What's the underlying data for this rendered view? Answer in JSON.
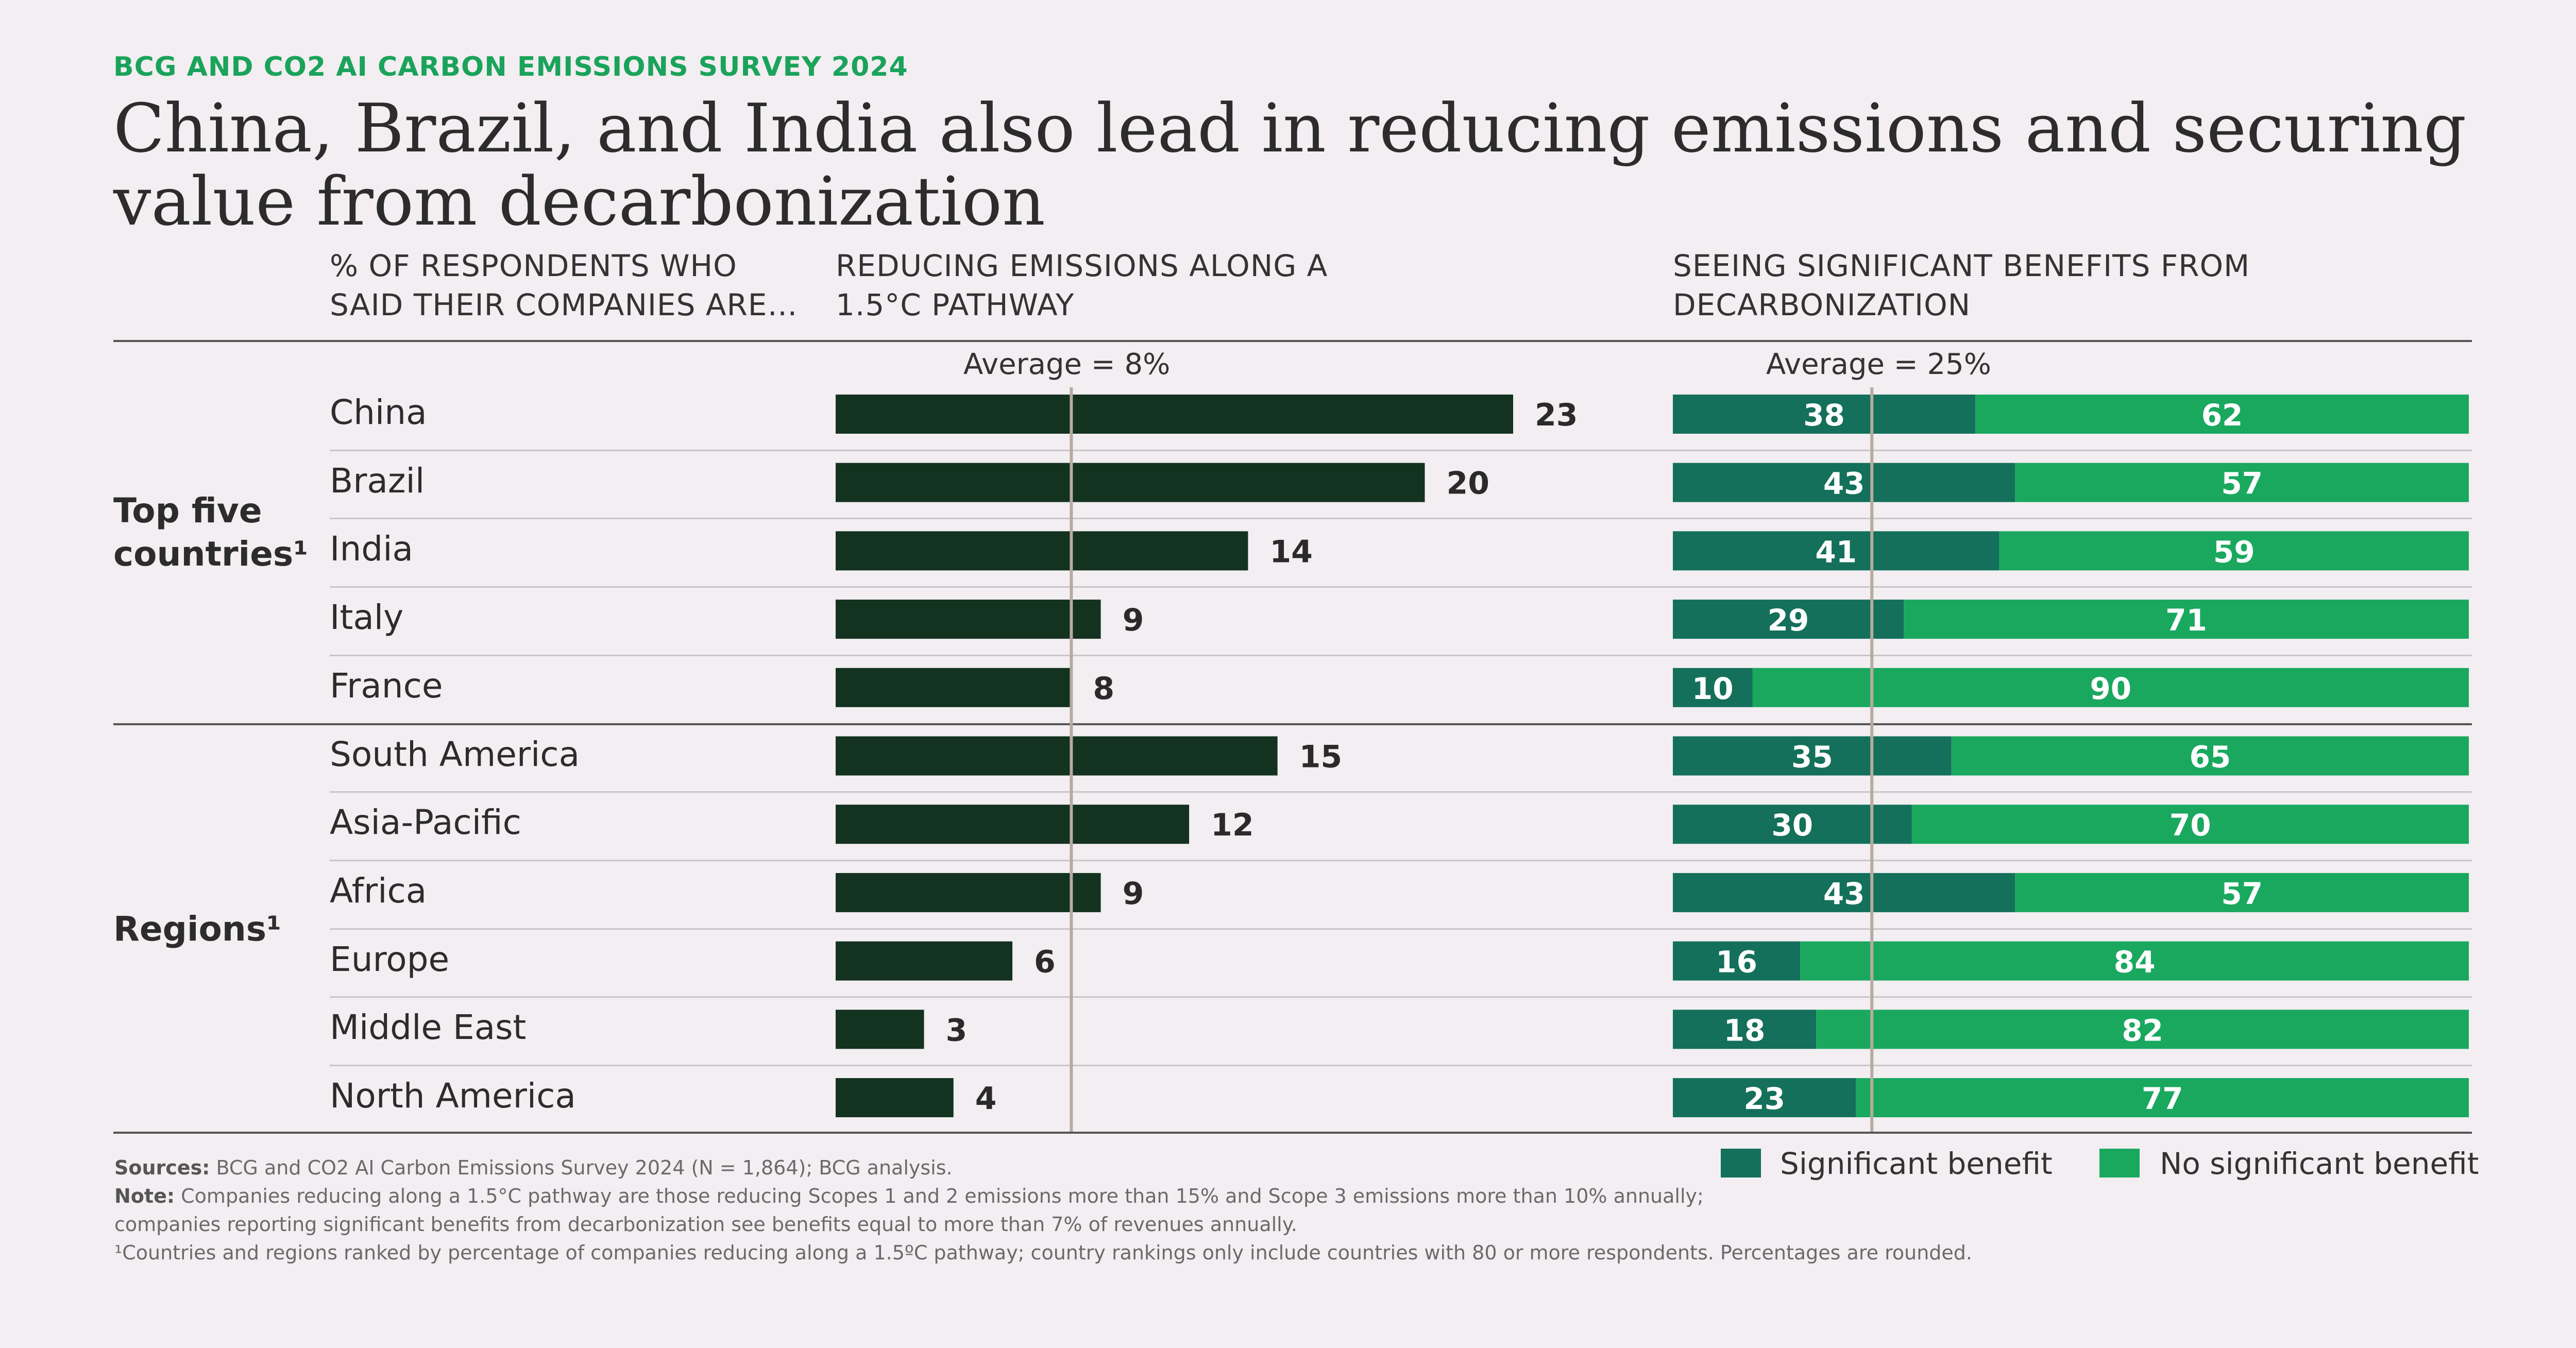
{
  "kicker": "BCG AND CO2 AI CARBON EMISSIONS SURVEY 2024",
  "title": "China, Brazil, and India also lead in reducing emissions and securing value from decarbonization",
  "column_headers": {
    "respondents": "% OF RESPONDENTS WHO SAID THEIR COMPANIES ARE…",
    "reducing": "REDUCING EMISSIONS ALONG A 1.5°C PATHWAY",
    "benefits": "SEEING SIGNIFICANT BENEFITS FROM DECARBONIZATION"
  },
  "averages": {
    "reducing_label": "Average = 8%",
    "benefits_label": "Average = 25%"
  },
  "groups": {
    "top_five": "Top five countries¹",
    "regions": "Regions¹"
  },
  "legend": {
    "significant": "Significant benefit",
    "no_significant": "No significant benefit"
  },
  "colors": {
    "dark_bar": "#13321f",
    "significant": "#14705a",
    "no_significant": "#1aa85f",
    "average_line": "#b7aaa0",
    "kicker": "#1aa35a"
  },
  "notes": {
    "sources_label": "Sources:",
    "sources": "BCG and CO2 AI Carbon Emissions Survey 2024 (N = 1,864); BCG analysis.",
    "note_label": "Note:",
    "note": "Companies reducing along a 1.5°C pathway are those reducing Scopes 1 and 2 emissions more than 15% and Scope 3 emissions more than 10% annually;",
    "note2": "companies reporting significant benefits from decarbonization see benefits equal to more than 7% of revenues annually.",
    "footnote": "¹Countries and regions ranked by percentage of companies reducing along a 1.5ºC pathway; country rankings only include countries with 80 or more respondents. Percentages are rounded."
  },
  "chart_data": [
    {
      "type": "bar",
      "title": "REDUCING EMISSIONS ALONG A 1.5°C PATHWAY",
      "categories": [
        "China",
        "Brazil",
        "India",
        "Italy",
        "France",
        "South America",
        "Asia-Pacific",
        "Africa",
        "Europe",
        "Middle East",
        "North America"
      ],
      "values": [
        23,
        20,
        14,
        9,
        8,
        15,
        12,
        9,
        6,
        3,
        4
      ],
      "average": 8,
      "xlim": [
        0,
        23
      ]
    },
    {
      "type": "bar",
      "stacked": true,
      "title": "SEEING SIGNIFICANT BENEFITS FROM DECARBONIZATION",
      "categories": [
        "China",
        "Brazil",
        "India",
        "Italy",
        "France",
        "South America",
        "Asia-Pacific",
        "Africa",
        "Europe",
        "Middle East",
        "North America"
      ],
      "series": [
        {
          "name": "Significant benefit",
          "values": [
            38,
            43,
            41,
            29,
            10,
            35,
            30,
            43,
            16,
            18,
            23
          ]
        },
        {
          "name": "No significant benefit",
          "values": [
            62,
            57,
            59,
            71,
            90,
            65,
            70,
            57,
            84,
            82,
            77
          ]
        }
      ],
      "average": 25,
      "xlim": [
        0,
        100
      ]
    }
  ]
}
